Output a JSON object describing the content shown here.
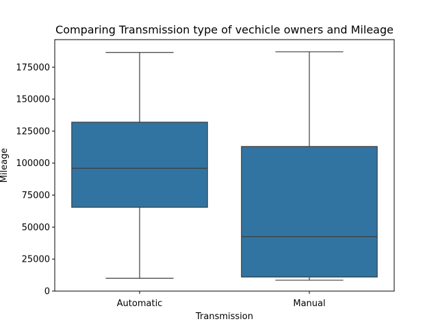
{
  "chart_data": {
    "type": "box",
    "title": "Comparing Transmission type of vechicle owners and Mileage",
    "xlabel": "Transmission",
    "ylabel": "Mileage",
    "categories": [
      "Automatic",
      "Manual"
    ],
    "boxes": [
      {
        "category": "Automatic",
        "whisker_low": 10000,
        "q1": 65500,
        "median": 96000,
        "q3": 132000,
        "whisker_high": 186500
      },
      {
        "category": "Manual",
        "whisker_low": 8500,
        "q1": 11000,
        "median": 42500,
        "q3": 113000,
        "whisker_high": 187000
      }
    ],
    "ylim": [
      0,
      196500
    ],
    "yticks": [
      0,
      25000,
      50000,
      75000,
      100000,
      125000,
      150000,
      175000
    ],
    "ytick_labels": [
      "0",
      "25000",
      "50000",
      "75000",
      "100000",
      "125000",
      "150000",
      "175000"
    ],
    "box_color": "#3274a1",
    "line_color": "#3d3d3d",
    "grid": false,
    "legend": "none"
  }
}
